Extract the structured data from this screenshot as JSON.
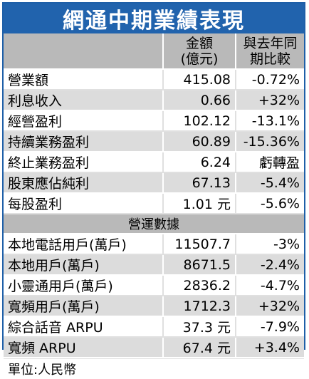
{
  "title": "網通中期業績表現",
  "header": {
    "col2": [
      "金額",
      "(億元)"
    ],
    "col3": [
      "與去年同",
      "期比較"
    ]
  },
  "rows_financial": [
    {
      "label": "營業額",
      "value": "415.08",
      "change": "-0.72%"
    },
    {
      "label": "利息收入",
      "value": "0.66",
      "change": "+32%"
    },
    {
      "label": "經營盈利",
      "value": "102.12",
      "change": "-13.1%"
    },
    {
      "label": "持續業務盈利",
      "value": "60.89",
      "change": "-15.36%"
    },
    {
      "label": "終止業務盈利",
      "value": "6.24",
      "change": "虧轉盈"
    },
    {
      "label": "股東應佔純利",
      "value": "67.13",
      "change": "-5.4%"
    },
    {
      "label": "每股盈利",
      "value": "1.01 元",
      "change": "-5.6%"
    }
  ],
  "section_label": "營運數據",
  "rows_operating": [
    {
      "label": "本地電話用戶(萬戶)",
      "value": "11507.7",
      "change": "-3%"
    },
    {
      "label": "本地用戶(萬戶)",
      "value": "8671.5",
      "change": "-2.4%"
    },
    {
      "label": "小靈通用戶(萬戶)",
      "value": "2836.2",
      "change": "-4.7%"
    },
    {
      "label": "寬頻用戶(萬戶)",
      "value": "1712.3",
      "change": "+32%"
    },
    {
      "label": "綜合話音 ARPU",
      "value": "37.3 元",
      "change": "-7.9%"
    },
    {
      "label": "寬頻 ARPU",
      "value": "67.4 元",
      "change": "+3.4%"
    }
  ],
  "unit_note": "單位:人民幣"
}
